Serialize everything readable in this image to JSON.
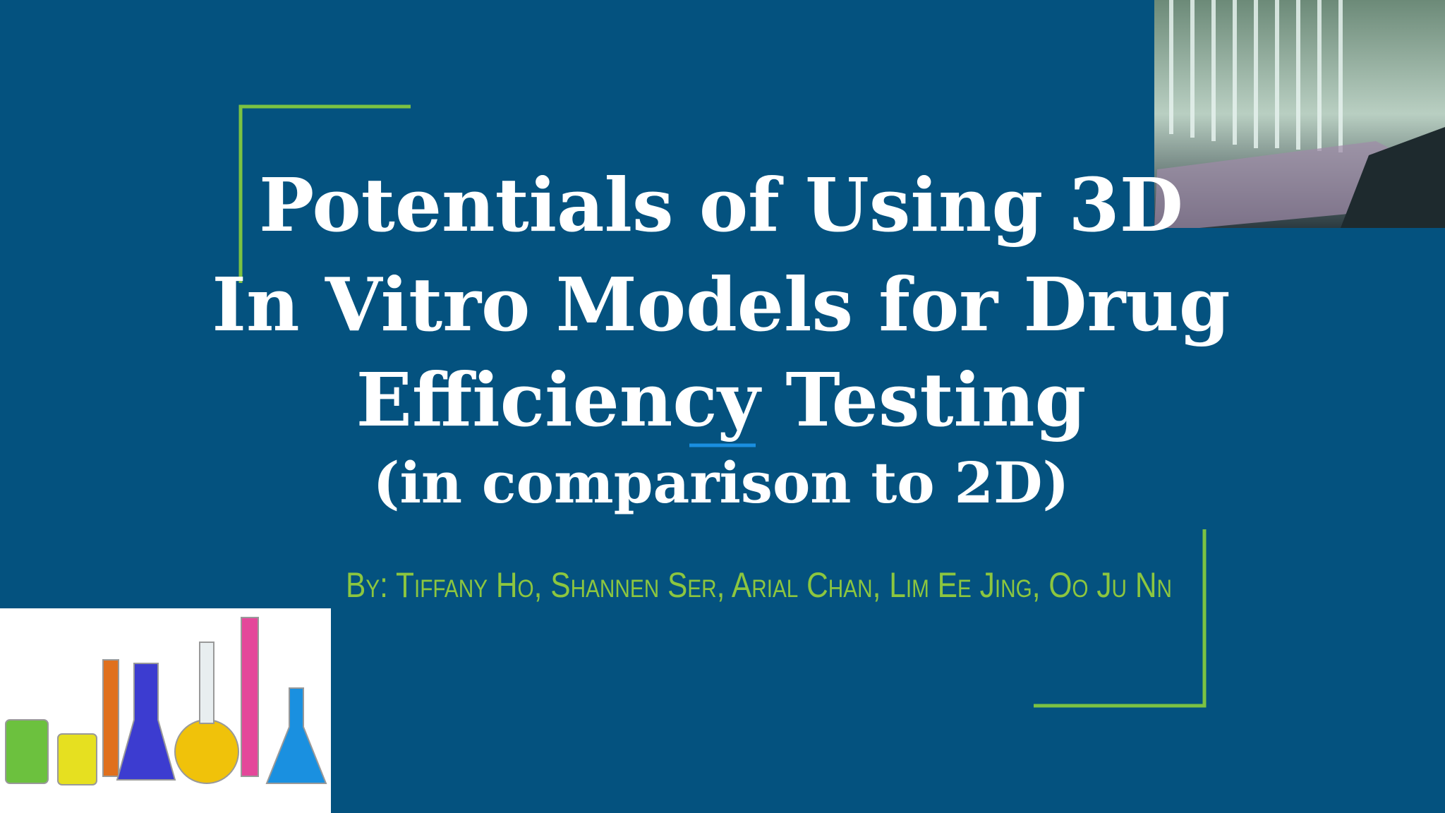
{
  "slide": {
    "title_lines": [
      "Potentials of Using 3D",
      "In Vitro Models for Drug",
      "Efficiency Testing"
    ],
    "subtitle": "(in comparison to 2D)",
    "authors": "By:  Tiffany Ho, Shannen Ser, Arial Chan, Lim Ee Jing, Oo Ju Nn"
  }
}
